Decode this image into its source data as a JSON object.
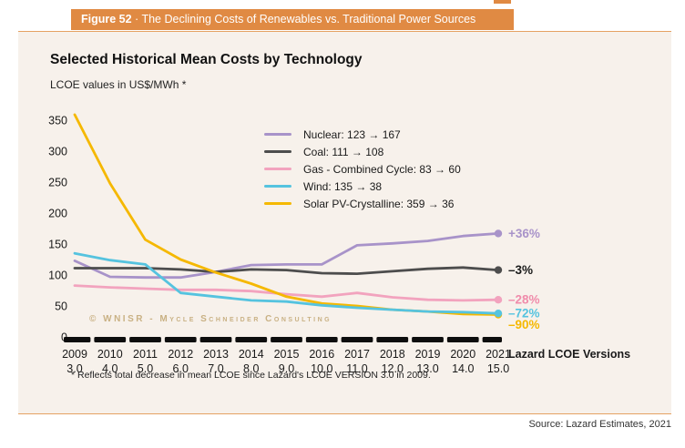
{
  "page": {
    "figure_label": "Figure 52",
    "figure_separator": " · ",
    "figure_title": "The Declining Costs of Renewables vs. Traditional Power Sources",
    "source": "Source: Lazard Estimates, 2021"
  },
  "panel": {
    "title": "Selected Historical Mean Costs by Technology",
    "subtitle": "LCOE values in US$/MWh *",
    "watermark": "© WNISR - Mycle Schneider Consulting",
    "footnote": "* Reflects total decrease in mean LCOE since Lazard's  LCOE VERSION 3.0 in 2009.",
    "axis_note": "Lazard LCOE Versions"
  },
  "colors": {
    "accent_orange": "#e08a43",
    "panel_background": "#f7f1eb",
    "axis_bar": "#0d0d0d",
    "watermark": "#c9b184"
  },
  "chart_data": {
    "type": "line",
    "title": "Selected Historical Mean Costs by Technology",
    "ylabel": "LCOE values in US$/MWh",
    "ylim": [
      0,
      350
    ],
    "yticks": [
      0,
      50,
      100,
      150,
      200,
      250,
      300,
      350
    ],
    "grid": false,
    "legend_position": "top-right-inside",
    "x_years": [
      "2009",
      "2010",
      "2011",
      "2012",
      "2013",
      "2014",
      "2015",
      "2016",
      "2017",
      "2018",
      "2019",
      "2020",
      "2021"
    ],
    "x_versions": [
      "3.0",
      "4.0",
      "5.0",
      "6.0",
      "7.0",
      "8.0",
      "9.0",
      "10.0",
      "11.0",
      "12.0",
      "13.0",
      "14.0",
      "15.0"
    ],
    "draw_order": [
      0,
      1,
      2,
      4,
      3
    ],
    "series": [
      {
        "name": "Nuclear",
        "legend": "Nuclear: 123 → 167",
        "color": "#a893c9",
        "values": [
          123,
          97,
          96,
          96,
          105,
          116,
          117,
          117,
          148,
          151,
          155,
          163,
          167
        ],
        "end_label": "+36%",
        "end_label_color": "#a893c9",
        "label_dy": 0
      },
      {
        "name": "Coal",
        "legend": "Coal: 111 → 108",
        "color": "#4d4d4d",
        "values": [
          111,
          111,
          111,
          109,
          105,
          109,
          108,
          103,
          102,
          106,
          110,
          112,
          108
        ],
        "end_label": "–3%",
        "end_label_color": "#1a1a1a",
        "label_dy": 0
      },
      {
        "name": "Gas - Combined Cycle",
        "legend": "Gas - Combined Cycle: 83 → 60",
        "color": "#f2a3be",
        "values": [
          83,
          80,
          78,
          76,
          76,
          74,
          69,
          65,
          71,
          64,
          60,
          59,
          60
        ],
        "end_label": "–28%",
        "end_label_color": "#f08cab",
        "label_dy": 0
      },
      {
        "name": "Wind",
        "legend": "Wind: 135 → 38",
        "color": "#55c3df",
        "values": [
          135,
          124,
          117,
          71,
          65,
          59,
          57,
          51,
          47,
          44,
          41,
          40,
          38
        ],
        "end_label": "–72%",
        "end_label_color": "#55c3df",
        "label_dy": 0
      },
      {
        "name": "Solar PV-Crystalline",
        "legend": "Solar PV-Crystalline: 359 → 36",
        "color": "#f5b800",
        "values": [
          359,
          248,
          157,
          125,
          104,
          86,
          65,
          54,
          50,
          44,
          41,
          37,
          36
        ],
        "end_label": "–90%",
        "end_label_color": "#f5b800",
        "label_dy": 11
      }
    ]
  }
}
